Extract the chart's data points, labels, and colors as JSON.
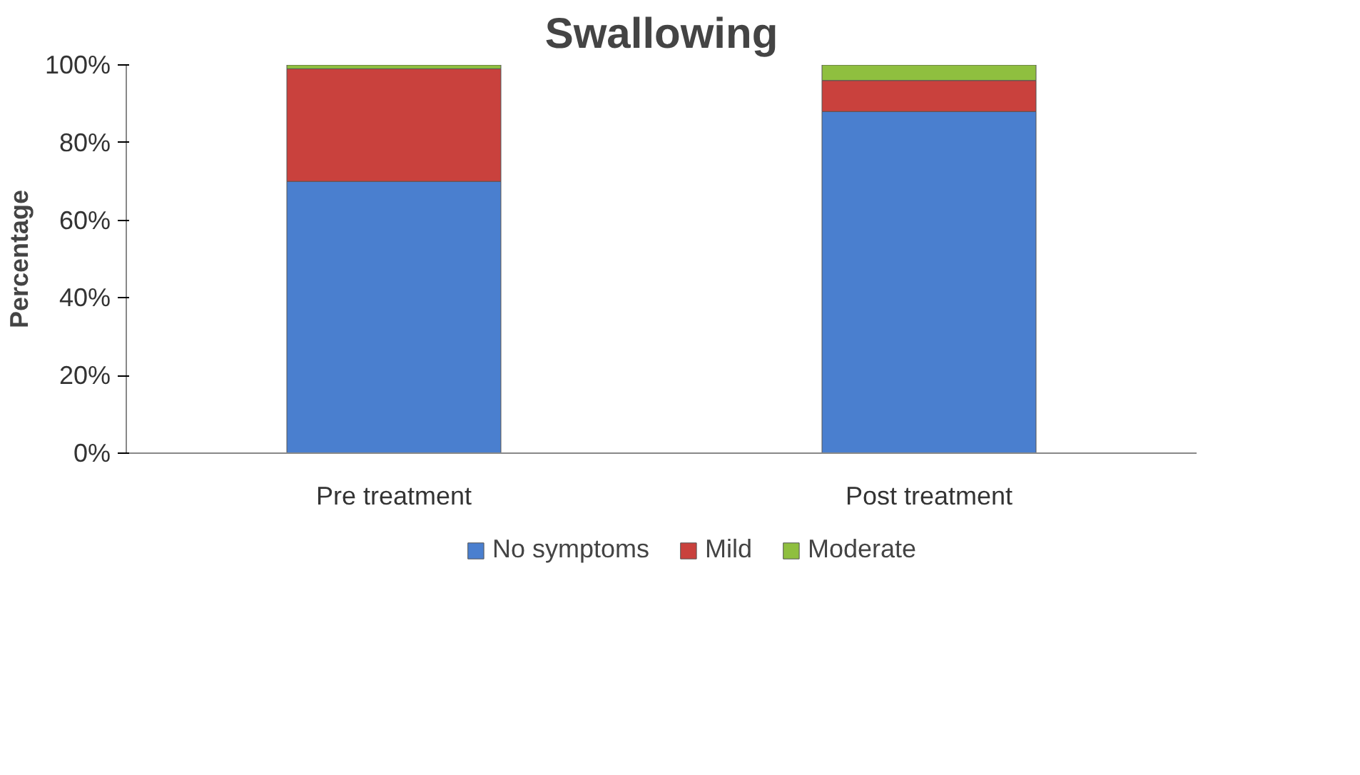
{
  "chart_data": {
    "type": "bar",
    "title": "Swallowing",
    "ylabel": "Percentage",
    "categories": [
      "Pre treatment",
      "Post treatment"
    ],
    "stacked": true,
    "series": [
      {
        "name": "No symptoms",
        "color": "#4a7fcf",
        "values": [
          70,
          88
        ]
      },
      {
        "name": "Mild",
        "color": "#c9413d",
        "values": [
          29,
          8
        ]
      },
      {
        "name": "Moderate",
        "color": "#8fbf3f",
        "values": [
          1,
          4
        ]
      }
    ],
    "ylim": [
      0,
      100
    ],
    "yticks": [
      {
        "value": 0,
        "label": "0%"
      },
      {
        "value": 20,
        "label": "20%"
      },
      {
        "value": 40,
        "label": "40%"
      },
      {
        "value": 60,
        "label": "60%"
      },
      {
        "value": 80,
        "label": "80%"
      },
      {
        "value": 100,
        "label": "100%"
      }
    ],
    "grid": false,
    "legend": "bottom"
  }
}
